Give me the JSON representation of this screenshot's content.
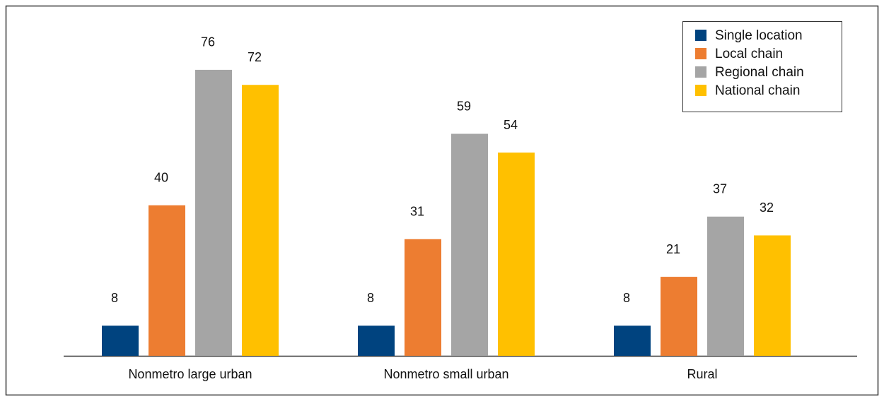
{
  "chart_data": {
    "type": "bar",
    "categories": [
      "Nonmetro large urban",
      "Nonmetro small urban",
      "Rural"
    ],
    "series": [
      {
        "name": "Single location",
        "color": "#00437f",
        "values": [
          8,
          8,
          8
        ]
      },
      {
        "name": "Local chain",
        "color": "#ed7d31",
        "values": [
          40,
          31,
          21
        ]
      },
      {
        "name": "Regional chain",
        "color": "#a5a5a5",
        "values": [
          76,
          59,
          37
        ]
      },
      {
        "name": "National chain",
        "color": "#ffc000",
        "values": [
          72,
          54,
          32
        ]
      }
    ],
    "legend": "upper right"
  }
}
